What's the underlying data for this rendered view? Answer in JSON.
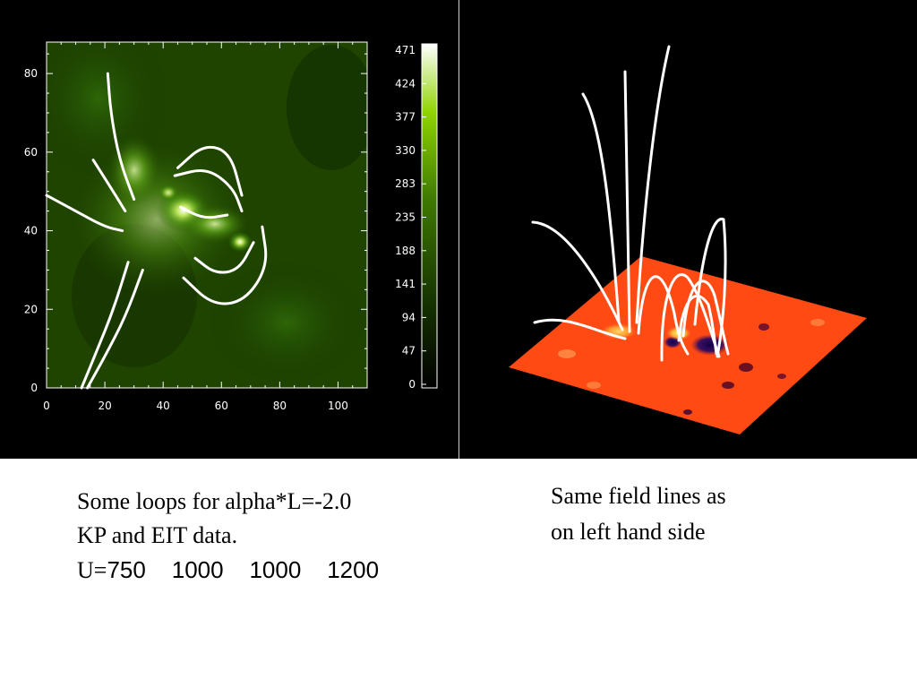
{
  "chart_data": [
    {
      "type": "heatmap",
      "xlabel": "",
      "ylabel": "",
      "xlim": [
        0,
        110
      ],
      "ylim": [
        0,
        88
      ],
      "x_ticks": [
        "0",
        "20",
        "40",
        "60",
        "80",
        "100"
      ],
      "y_ticks": [
        "0",
        "20",
        "40",
        "60",
        "80"
      ],
      "colorbar": {
        "min": 0,
        "max": 471,
        "ticks": [
          "471",
          "424",
          "377",
          "330",
          "283",
          "235",
          "188",
          "141",
          "94",
          "47",
          "0"
        ],
        "colors": [
          "#000000",
          "#1a3a00",
          "#3f7a00",
          "#8fd400",
          "#ffffff"
        ]
      },
      "field_lines_color": "#ffffff",
      "field_lines": [
        [
          [
            21,
            80
          ],
          [
            22,
            70
          ],
          [
            25,
            58
          ],
          [
            30,
            48
          ]
        ],
        [
          [
            16,
            58
          ],
          [
            22,
            51
          ],
          [
            27,
            45
          ]
        ],
        [
          [
            0,
            49
          ],
          [
            10,
            45
          ],
          [
            20,
            41
          ],
          [
            26,
            40
          ]
        ],
        [
          [
            28,
            32
          ],
          [
            23,
            20
          ],
          [
            17,
            9
          ],
          [
            12,
            0
          ]
        ],
        [
          [
            33,
            30
          ],
          [
            27,
            18
          ],
          [
            20,
            8
          ],
          [
            14,
            0
          ]
        ],
        [
          [
            45,
            56
          ],
          [
            54,
            62
          ],
          [
            63,
            60
          ],
          [
            67,
            49
          ]
        ],
        [
          [
            44,
            54
          ],
          [
            55,
            56
          ],
          [
            64,
            51
          ],
          [
            67,
            45
          ]
        ],
        [
          [
            46,
            46
          ],
          [
            54,
            43
          ],
          [
            62,
            44
          ]
        ],
        [
          [
            51,
            33
          ],
          [
            58,
            29
          ],
          [
            66,
            30
          ],
          [
            71,
            37
          ]
        ],
        [
          [
            47,
            28
          ],
          [
            57,
            21
          ],
          [
            68,
            22
          ],
          [
            76,
            31
          ],
          [
            74,
            41
          ]
        ]
      ]
    },
    {
      "type": "surface-3d",
      "surface_color": "#ff4a14",
      "field_lines_color": "#ffffff"
    }
  ],
  "captions": {
    "left_line1": "Some loops for alpha*L=-2.0",
    "left_line2": "KP and EIT data.",
    "left_line3_prefix": "U=",
    "left_line3_values": "750    1000    1000    1200",
    "right_line1": "Same field lines as",
    "right_line2": "on left hand side"
  }
}
